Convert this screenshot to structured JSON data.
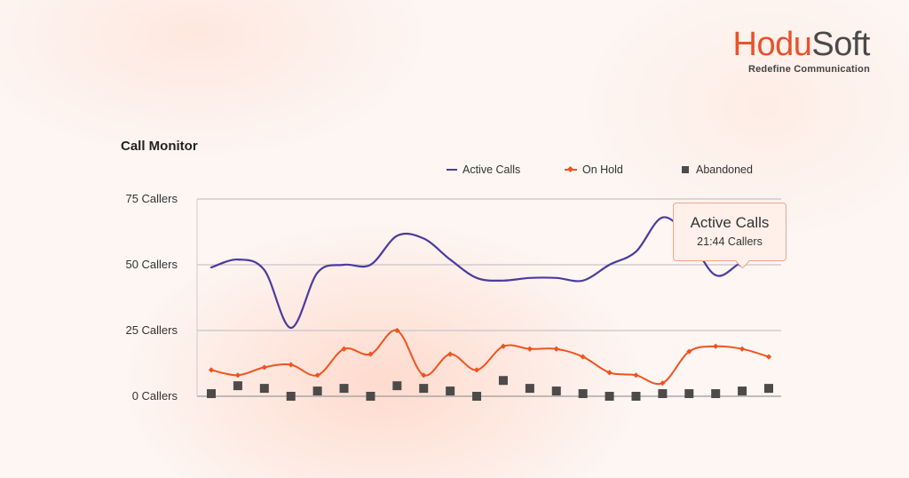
{
  "brand": {
    "name_part1": "Hodu",
    "name_part2": "Soft",
    "tagline": "Redefine Communication",
    "accent_color": "#e8522a"
  },
  "chart_data": {
    "type": "line",
    "title": "Call Monitor",
    "xlabel": "",
    "ylabel": "",
    "y_tick_labels": [
      "0 Callers",
      "25 Callers",
      "50 Callers",
      "75 Callers"
    ],
    "y_ticks": [
      0,
      25,
      50,
      75
    ],
    "ylim": [
      0,
      75
    ],
    "x_count": 22,
    "grid": true,
    "legend_position": "top",
    "series": [
      {
        "name": "Active Calls",
        "style": "line",
        "color": "#4b3b9e",
        "values": [
          49,
          52,
          48,
          26,
          47,
          50,
          50,
          61,
          60,
          52,
          45,
          44,
          45,
          45,
          44,
          50,
          55,
          68,
          60,
          46,
          51,
          53
        ]
      },
      {
        "name": "On Hold",
        "style": "line-markers",
        "color": "#f0531e",
        "values": [
          10,
          8,
          11,
          12,
          8,
          18,
          16,
          25,
          8,
          16,
          10,
          19,
          18,
          18,
          15,
          9,
          8,
          5,
          17,
          19,
          18,
          15
        ]
      },
      {
        "name": "Abandoned",
        "style": "markers",
        "color": "#4d4a4a",
        "values": [
          1,
          4,
          3,
          0,
          2,
          3,
          0,
          4,
          3,
          2,
          0,
          6,
          3,
          2,
          1,
          0,
          0,
          1,
          1,
          1,
          2,
          3
        ]
      }
    ],
    "tooltip": {
      "series": "Active Calls",
      "title": "Active Calls",
      "value": "21:44 Callers",
      "highlight_index": 20
    }
  }
}
